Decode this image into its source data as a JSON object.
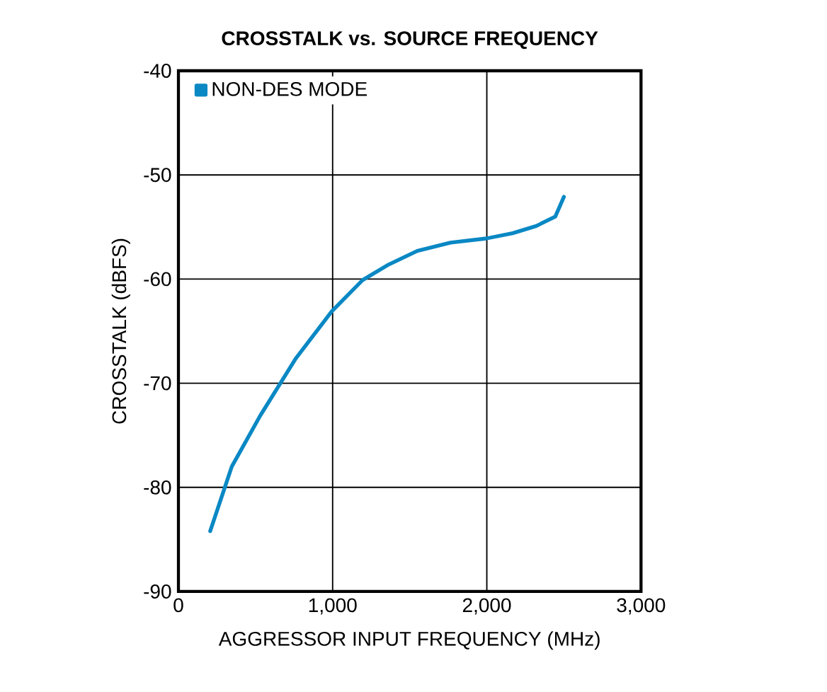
{
  "chart_data": {
    "type": "line",
    "title": "CROSSTALK vs. SOURCE FREQUENCY",
    "xlabel": "AGGRESSOR INPUT FREQUENCY (MHz)",
    "ylabel": "CROSSTALK (dBFS)",
    "xlim": [
      0,
      3000
    ],
    "ylim": [
      -90,
      -40
    ],
    "xticks": [
      {
        "value": 0,
        "label": "0"
      },
      {
        "value": 1000,
        "label": "1,000"
      },
      {
        "value": 2000,
        "label": "2,000"
      },
      {
        "value": 3000,
        "label": "3,000"
      }
    ],
    "yticks": [
      -90,
      -80,
      -70,
      -60,
      -50,
      -40
    ],
    "grid": true,
    "legend": "top left",
    "series": [
      {
        "name": "NON-DES MODE",
        "color": "#0a88c4",
        "x": [
          206,
          346,
          531,
          762,
          994,
          1194,
          1364,
          1549,
          1765,
          1997,
          2167,
          2321,
          2444,
          2500
        ],
        "values": [
          -84.2,
          -78.0,
          -73.1,
          -67.6,
          -63.1,
          -60.1,
          -58.6,
          -57.3,
          -56.5,
          -56.1,
          -55.6,
          -54.9,
          -54.0,
          -52.1
        ]
      }
    ]
  }
}
